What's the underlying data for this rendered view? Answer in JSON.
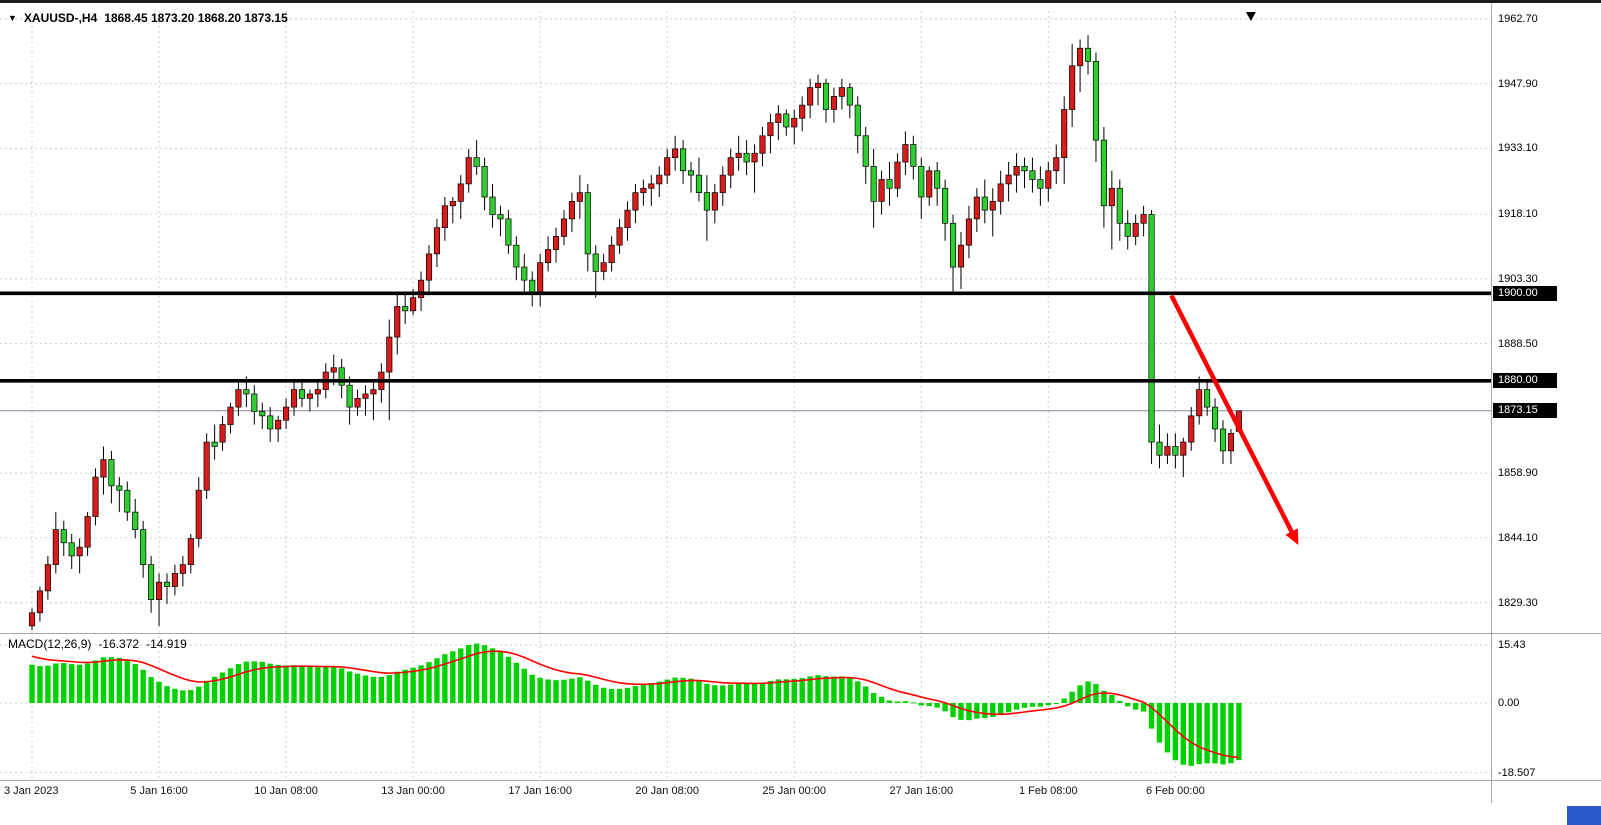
{
  "header": {
    "symbol_timeframe": "XAUUSD-,H4",
    "ohlc_text": "1868.45 1873.20 1868.20 1873.15"
  },
  "macd": {
    "title": "MACD(12,26,9)",
    "macd_value_text": "-16.372",
    "signal_value_text": "-14.919"
  },
  "colors": {
    "background": "#ffffff",
    "bull": "#d81b1b",
    "bear": "#2fce2f",
    "wick": "#000000",
    "grid": "#cccccc",
    "level_line": "#000000",
    "price_line": "#7a8aa0",
    "macd_histogram": "#00d200",
    "macd_signal": "#ff0000",
    "arrow": "#ff0000",
    "tag_bg": "#000000",
    "tag_text": "#ffffff",
    "separator": "#a8a8a8",
    "corner_accent": "#2b59c9",
    "axis_text": "#000000"
  },
  "chart_data": {
    "type": "candlestick",
    "symbol": "XAUUSD-",
    "timeframe": "H4",
    "title": "XAUUSD-,H4",
    "current_ohlc": {
      "open": 1868.45,
      "high": 1873.2,
      "low": 1868.2,
      "close": 1873.15
    },
    "current_price": 1873.15,
    "levels": [
      1900.0,
      1880.0
    ],
    "arrow": {
      "from_bar": 143.5,
      "from_price": 1899.5,
      "to_bar": 159.5,
      "to_price": 1842.5
    },
    "y_ticks": [
      {
        "text": "1962.70",
        "value": 1962.7
      },
      {
        "text": "1947.90",
        "value": 1947.9
      },
      {
        "text": "1933.10",
        "value": 1933.1
      },
      {
        "text": "1918.10",
        "value": 1918.1
      },
      {
        "text": "1903.30",
        "value": 1903.3
      },
      {
        "text": "1888.50",
        "value": 1888.5
      },
      {
        "text": "1858.90",
        "value": 1858.9
      },
      {
        "text": "1844.10",
        "value": 1844.1
      },
      {
        "text": "1829.30",
        "value": 1829.3
      }
    ],
    "y_tags": [
      {
        "text": "1900.00",
        "value": 1900.0,
        "kind": "level"
      },
      {
        "text": "1880.00",
        "value": 1880.0,
        "kind": "level"
      },
      {
        "text": "1873.15",
        "value": 1873.15,
        "kind": "current-price"
      }
    ],
    "x_ticks": [
      {
        "text": "3 Jan 2023",
        "bar": 0
      },
      {
        "text": "5 Jan 16:00",
        "bar": 16
      },
      {
        "text": "10 Jan 08:00",
        "bar": 32
      },
      {
        "text": "13 Jan 00:00",
        "bar": 48
      },
      {
        "text": "17 Jan 16:00",
        "bar": 64
      },
      {
        "text": "20 Jan 08:00",
        "bar": 80
      },
      {
        "text": "25 Jan 00:00",
        "bar": 96
      },
      {
        "text": "27 Jan 16:00",
        "bar": 112
      },
      {
        "text": "1 Feb 08:00",
        "bar": 128
      },
      {
        "text": "6 Feb 00:00",
        "bar": 144
      }
    ],
    "macd_ticks": [
      {
        "text": "15.43",
        "value": 15.43
      },
      {
        "text": "0.00",
        "value": 0.0
      },
      {
        "text": "-18.507",
        "value": -18.507
      }
    ],
    "indicator": {
      "name": "MACD",
      "params": [
        12,
        26,
        9
      ],
      "macd_value": -16.372,
      "signal_value": -14.919,
      "scale_max": 15.43,
      "scale_min": -18.507
    },
    "candles": [
      [
        1824,
        1828,
        1823,
        1827
      ],
      [
        1827,
        1833,
        1825,
        1832
      ],
      [
        1832,
        1840,
        1830,
        1838
      ],
      [
        1838,
        1850,
        1836,
        1846
      ],
      [
        1846,
        1848,
        1840,
        1843
      ],
      [
        1843,
        1845,
        1837,
        1840
      ],
      [
        1840,
        1844,
        1836,
        1842
      ],
      [
        1842,
        1850,
        1840,
        1849
      ],
      [
        1849,
        1860,
        1847,
        1858
      ],
      [
        1858,
        1865,
        1854,
        1862
      ],
      [
        1862,
        1864,
        1852,
        1856
      ],
      [
        1856,
        1858,
        1850,
        1855
      ],
      [
        1855,
        1857,
        1848,
        1850
      ],
      [
        1850,
        1853,
        1844,
        1846
      ],
      [
        1846,
        1848,
        1835,
        1838
      ],
      [
        1838,
        1840,
        1827,
        1830
      ],
      [
        1830,
        1836,
        1824,
        1834
      ],
      [
        1834,
        1836,
        1829,
        1833
      ],
      [
        1833,
        1838,
        1831,
        1836
      ],
      [
        1836,
        1840,
        1833,
        1838
      ],
      [
        1838,
        1845,
        1836,
        1844
      ],
      [
        1844,
        1858,
        1842,
        1855
      ],
      [
        1855,
        1868,
        1853,
        1866
      ],
      [
        1866,
        1870,
        1862,
        1865
      ],
      [
        1866,
        1872,
        1864,
        1870
      ],
      [
        1870,
        1875,
        1868,
        1874
      ],
      [
        1874,
        1880,
        1872,
        1878
      ],
      [
        1878,
        1881,
        1874,
        1877
      ],
      [
        1877,
        1879,
        1870,
        1873
      ],
      [
        1873,
        1875,
        1869,
        1872
      ],
      [
        1872,
        1874,
        1866,
        1869
      ],
      [
        1869,
        1872,
        1866,
        1871
      ],
      [
        1871,
        1876,
        1869,
        1874
      ],
      [
        1874,
        1880,
        1872,
        1878
      ],
      [
        1878,
        1880,
        1874,
        1876
      ],
      [
        1876,
        1878,
        1873,
        1877
      ],
      [
        1877,
        1880,
        1874,
        1878
      ],
      [
        1878,
        1884,
        1876,
        1882
      ],
      [
        1882,
        1886,
        1879,
        1883
      ],
      [
        1883,
        1885,
        1876,
        1879
      ],
      [
        1879,
        1881,
        1870,
        1874
      ],
      [
        1874,
        1878,
        1872,
        1876
      ],
      [
        1876,
        1879,
        1872,
        1877
      ],
      [
        1877,
        1880,
        1871,
        1878
      ],
      [
        1878,
        1884,
        1875,
        1882
      ],
      [
        1882,
        1894,
        1871,
        1890
      ],
      [
        1890,
        1900,
        1886,
        1897
      ],
      [
        1897,
        1900,
        1893,
        1896
      ],
      [
        1896,
        1901,
        1895,
        1899
      ],
      [
        1899,
        1905,
        1896,
        1903
      ],
      [
        1903,
        1911,
        1900,
        1909
      ],
      [
        1909,
        1917,
        1906,
        1915
      ],
      [
        1915,
        1922,
        1912,
        1920
      ],
      [
        1920,
        1922,
        1916,
        1921
      ],
      [
        1921,
        1927,
        1917,
        1925
      ],
      [
        1925,
        1933,
        1923,
        1931
      ],
      [
        1931,
        1935,
        1927,
        1929
      ],
      [
        1929,
        1931,
        1919,
        1922
      ],
      [
        1922,
        1925,
        1915,
        1918
      ],
      [
        1918,
        1920,
        1913,
        1917
      ],
      [
        1917,
        1919,
        1909,
        1911
      ],
      [
        1911,
        1913,
        1903,
        1906
      ],
      [
        1906,
        1909,
        1900,
        1903
      ],
      [
        1903,
        1905,
        1897,
        1900
      ],
      [
        1900,
        1909,
        1897,
        1907
      ],
      [
        1907,
        1913,
        1905,
        1910
      ],
      [
        1910,
        1915,
        1907,
        1913
      ],
      [
        1913,
        1919,
        1911,
        1917
      ],
      [
        1917,
        1923,
        1914,
        1921
      ],
      [
        1921,
        1927,
        1917,
        1923
      ],
      [
        1923,
        1925,
        1905,
        1909
      ],
      [
        1909,
        1911,
        1899,
        1905
      ],
      [
        1905,
        1909,
        1903,
        1907
      ],
      [
        1907,
        1913,
        1905,
        1911
      ],
      [
        1911,
        1917,
        1909,
        1915
      ],
      [
        1915,
        1921,
        1912,
        1919
      ],
      [
        1919,
        1925,
        1916,
        1923
      ],
      [
        1923,
        1926,
        1920,
        1924
      ],
      [
        1924,
        1927,
        1920,
        1925
      ],
      [
        1925,
        1929,
        1922,
        1927
      ],
      [
        1927,
        1933,
        1925,
        1931
      ],
      [
        1931,
        1936,
        1928,
        1933
      ],
      [
        1933,
        1935,
        1925,
        1928
      ],
      [
        1928,
        1930,
        1923,
        1927
      ],
      [
        1927,
        1931,
        1921,
        1923
      ],
      [
        1923,
        1927,
        1912,
        1919
      ],
      [
        1919,
        1925,
        1916,
        1923
      ],
      [
        1923,
        1929,
        1920,
        1927
      ],
      [
        1927,
        1933,
        1924,
        1931
      ],
      [
        1931,
        1936,
        1928,
        1932
      ],
      [
        1932,
        1935,
        1927,
        1930
      ],
      [
        1930,
        1934,
        1923,
        1932
      ],
      [
        1932,
        1938,
        1929,
        1936
      ],
      [
        1936,
        1941,
        1932,
        1939
      ],
      [
        1939,
        1943,
        1935,
        1941
      ],
      [
        1941,
        1942,
        1936,
        1938
      ],
      [
        1938,
        1942,
        1934,
        1940
      ],
      [
        1940,
        1945,
        1937,
        1943
      ],
      [
        1943,
        1949,
        1940,
        1947
      ],
      [
        1947,
        1950,
        1943,
        1948
      ],
      [
        1948,
        1949,
        1939,
        1942
      ],
      [
        1942,
        1947,
        1939,
        1945
      ],
      [
        1945,
        1949,
        1942,
        1947
      ],
      [
        1947,
        1948,
        1940,
        1943
      ],
      [
        1943,
        1945,
        1932,
        1936
      ],
      [
        1936,
        1938,
        1925,
        1929
      ],
      [
        1929,
        1933,
        1915,
        1921
      ],
      [
        1921,
        1928,
        1918,
        1926
      ],
      [
        1926,
        1930,
        1920,
        1924
      ],
      [
        1924,
        1932,
        1922,
        1930
      ],
      [
        1930,
        1937,
        1927,
        1934
      ],
      [
        1934,
        1936,
        1926,
        1929
      ],
      [
        1929,
        1931,
        1917,
        1922
      ],
      [
        1922,
        1929,
        1920,
        1928
      ],
      [
        1928,
        1930,
        1920,
        1924
      ],
      [
        1924,
        1926,
        1912,
        1916
      ],
      [
        1916,
        1918,
        1900,
        1906
      ],
      [
        1906,
        1914,
        1901,
        1911
      ],
      [
        1911,
        1920,
        1908,
        1917
      ],
      [
        1917,
        1924,
        1914,
        1922
      ],
      [
        1922,
        1926,
        1916,
        1919
      ],
      [
        1919,
        1924,
        1913,
        1921
      ],
      [
        1921,
        1928,
        1918,
        1925
      ],
      [
        1925,
        1930,
        1921,
        1927
      ],
      [
        1927,
        1932,
        1923,
        1929
      ],
      [
        1929,
        1931,
        1924,
        1928
      ],
      [
        1928,
        1931,
        1923,
        1926
      ],
      [
        1926,
        1929,
        1920,
        1924
      ],
      [
        1924,
        1930,
        1921,
        1928
      ],
      [
        1928,
        1934,
        1925,
        1931
      ],
      [
        1931,
        1945,
        1925,
        1942
      ],
      [
        1942,
        1957,
        1938,
        1952
      ],
      [
        1952,
        1958,
        1946,
        1956
      ],
      [
        1956,
        1959,
        1950,
        1953
      ],
      [
        1953,
        1955,
        1930,
        1935
      ],
      [
        1935,
        1938,
        1915,
        1920
      ],
      [
        1920,
        1928,
        1910,
        1924
      ],
      [
        1924,
        1926,
        1912,
        1916
      ],
      [
        1916,
        1919,
        1910,
        1913
      ],
      [
        1913,
        1918,
        1911,
        1916
      ],
      [
        1916,
        1920,
        1913,
        1918
      ],
      [
        1918,
        1919,
        1861,
        1866
      ],
      [
        1866,
        1870,
        1860,
        1863
      ],
      [
        1863,
        1868,
        1861,
        1865
      ],
      [
        1865,
        1868,
        1860,
        1863
      ],
      [
        1863,
        1867,
        1858,
        1866
      ],
      [
        1866,
        1874,
        1864,
        1872
      ],
      [
        1872,
        1881,
        1870,
        1878
      ],
      [
        1878,
        1880,
        1872,
        1874
      ],
      [
        1874,
        1876,
        1866,
        1869
      ],
      [
        1869,
        1871,
        1861,
        1864
      ],
      [
        1864,
        1869,
        1861,
        1868
      ],
      [
        1868.45,
        1873.2,
        1868.2,
        1873.15
      ]
    ]
  }
}
